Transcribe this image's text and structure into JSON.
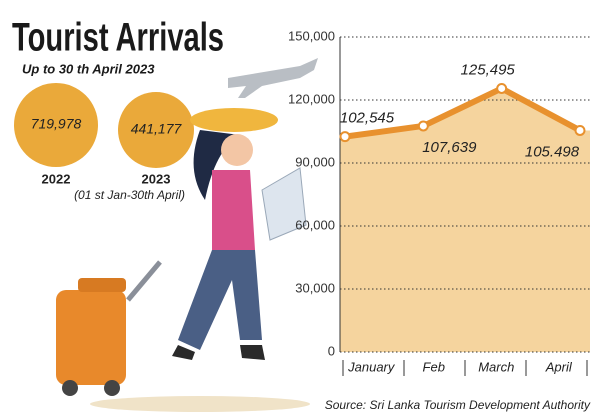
{
  "header": {
    "title": "Tourist Arrivals",
    "subtitle": "Up to 30 th April 2023"
  },
  "summary": [
    {
      "value": "719,978",
      "year": "2022"
    },
    {
      "value": "441,177",
      "year": "2023",
      "note": "(01 st Jan-30th April)"
    }
  ],
  "chart_data": {
    "type": "area",
    "categories": [
      "January",
      "Feb",
      "March",
      "April"
    ],
    "values": [
      102545,
      107639,
      125495,
      105498
    ],
    "value_labels": [
      "102,545",
      "107,639",
      "125,495",
      "105.498"
    ],
    "color": "#e8912e",
    "fill": "#f5d49e",
    "ylim": [
      0,
      150000
    ],
    "yticks": [
      0,
      {
        "value": 30000,
        "label": "30,000"
      },
      {
        "value": 60000,
        "label": "60,000"
      },
      {
        "value": 90000,
        "label": "90,000"
      },
      {
        "value": 120000,
        "label": "120,000"
      },
      {
        "value": 150000,
        "label": "150,000"
      }
    ],
    "grid": true
  },
  "source": "Source: Sri Lanka Tourism Development Authority"
}
